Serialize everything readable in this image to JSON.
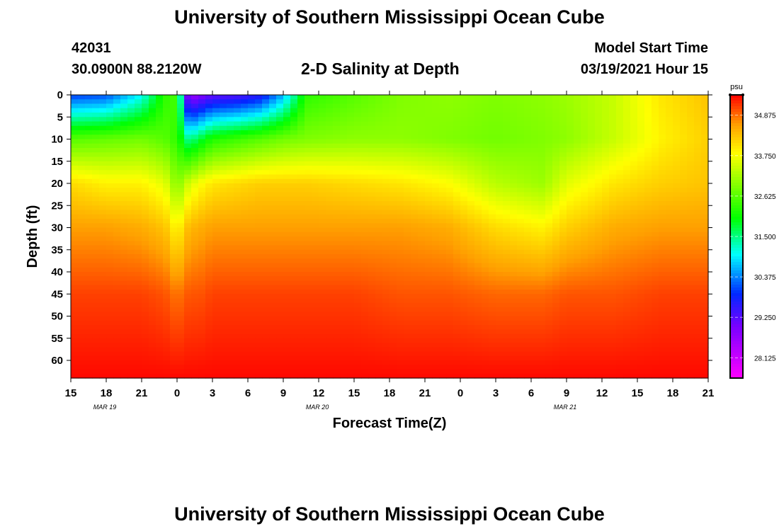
{
  "page": {
    "title_top": "University of Southern Mississippi Ocean Cube",
    "title_bottom": "University of Southern Mississippi Ocean Cube"
  },
  "header": {
    "station_id": "42031",
    "coords": "30.0900N 88.2120W",
    "plot_title": "2-D Salinity at Depth",
    "model_label": "Model Start Time",
    "model_time": "03/19/2021 Hour 15"
  },
  "chart_data": {
    "type": "heatmap",
    "title": "2-D Salinity at Depth",
    "xlabel": "Forecast Time(Z)",
    "ylabel": "Depth (ft)",
    "x_ticks": [
      "15",
      "18",
      "21",
      "0",
      "3",
      "6",
      "9",
      "12",
      "15",
      "18",
      "21",
      "0",
      "3",
      "6",
      "9",
      "12",
      "15",
      "18",
      "21"
    ],
    "x_day_labels": [
      {
        "label": "MAR  19",
        "at_tick": 1
      },
      {
        "label": "MAR  20",
        "at_tick": 7
      },
      {
        "label": "MAR  21",
        "at_tick": 14
      }
    ],
    "y_ticks": [
      0,
      5,
      10,
      15,
      20,
      25,
      30,
      35,
      40,
      45,
      50,
      55,
      60
    ],
    "ylim": [
      0,
      64
    ],
    "xlim_hours": [
      0,
      54
    ],
    "colorbar": {
      "unit": "psu",
      "ticks": [
        "34.875",
        "33.750",
        "32.625",
        "31.500",
        "30.375",
        "29.250",
        "28.125"
      ],
      "range": [
        27.56,
        35.44
      ]
    },
    "value_profile_psu": {
      "columns_hours": [
        0,
        3,
        6,
        8,
        9,
        10,
        11,
        12,
        14,
        16,
        18,
        20,
        24,
        28,
        32,
        36,
        40,
        42,
        46,
        50,
        54
      ],
      "surface": [
        30.0,
        30.1,
        31.0,
        32.3,
        32.5,
        28.6,
        28.9,
        29.2,
        29.3,
        29.6,
        30.6,
        32.3,
        32.6,
        32.9,
        33.0,
        32.9,
        33.0,
        33.1,
        33.4,
        34.0,
        34.3
      ],
      "depth_10ft": [
        32.6,
        32.7,
        32.8,
        32.6,
        32.3,
        31.4,
        31.8,
        32.2,
        32.4,
        32.6,
        32.8,
        32.9,
        33.0,
        33.0,
        32.9,
        32.8,
        32.9,
        33.0,
        33.4,
        33.9,
        34.2
      ],
      "depth_20ft": [
        34.1,
        33.9,
        33.9,
        33.6,
        32.9,
        33.5,
        33.8,
        34.0,
        34.1,
        34.2,
        34.2,
        34.2,
        34.1,
        34.0,
        33.8,
        33.3,
        33.1,
        33.6,
        34.0,
        34.2,
        34.3
      ],
      "depth_30ft": [
        34.6,
        34.6,
        34.5,
        34.3,
        33.8,
        34.4,
        34.5,
        34.6,
        34.6,
        34.6,
        34.6,
        34.6,
        34.6,
        34.6,
        34.5,
        34.1,
        33.9,
        34.2,
        34.5,
        34.6,
        34.6
      ],
      "depth_45ft": [
        35.1,
        35.1,
        35.1,
        35.0,
        34.8,
        35.0,
        35.0,
        35.1,
        35.1,
        35.1,
        35.1,
        35.1,
        35.1,
        35.0,
        35.0,
        34.9,
        34.9,
        35.0,
        35.0,
        35.1,
        35.1
      ],
      "depth_64ft": [
        35.4,
        35.4,
        35.4,
        35.4,
        35.4,
        35.4,
        35.4,
        35.4,
        35.4,
        35.4,
        35.4,
        35.4,
        35.4,
        35.4,
        35.4,
        35.4,
        35.4,
        35.4,
        35.4,
        35.4,
        35.4
      ]
    },
    "grid": false
  }
}
